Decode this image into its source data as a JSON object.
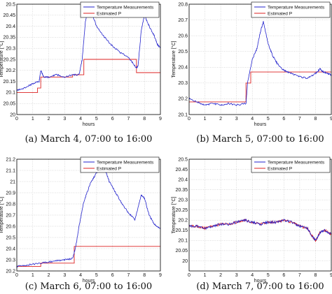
{
  "chart_data": [
    {
      "type": "line",
      "caption": "(a) March 4, 07:00 to 16:00",
      "xlabel": "hours",
      "ylabel": "Temperature [°C]",
      "xlim": [
        0,
        9
      ],
      "ylim": [
        20.0,
        20.5
      ],
      "xticks": [
        "0",
        "1",
        "2",
        "3",
        "4",
        "5",
        "6",
        "7",
        "8",
        "9"
      ],
      "yticks": [
        "20",
        "20.05",
        "20.1",
        "20.15",
        "20.2",
        "20.25",
        "20.3",
        "20.35",
        "20.4",
        "20.45",
        "20.5"
      ],
      "grid": true,
      "legend_position": "top-right",
      "series": [
        {
          "name": "Temperature Measurements",
          "color": "#2222cc",
          "x": [
            0,
            0.5,
            1.0,
            1.4,
            1.5,
            1.7,
            2.0,
            2.5,
            3.0,
            3.5,
            3.9,
            4.1,
            4.3,
            4.5,
            4.7,
            5.0,
            5.5,
            6.0,
            6.5,
            7.0,
            7.5,
            7.6,
            7.8,
            8.0,
            8.3,
            8.6,
            8.8,
            9.0
          ],
          "y": [
            20.11,
            20.12,
            20.14,
            20.15,
            20.2,
            20.17,
            20.17,
            20.18,
            20.17,
            20.18,
            20.18,
            20.25,
            20.42,
            20.49,
            20.46,
            20.4,
            20.35,
            20.31,
            20.28,
            20.26,
            20.21,
            20.22,
            20.38,
            20.45,
            20.4,
            20.36,
            20.32,
            20.3
          ]
        },
        {
          "name": "Estimated P",
          "color": "#dd2222",
          "x": [
            0,
            1.3,
            1.3,
            1.5,
            1.5,
            3.5,
            3.5,
            4.2,
            4.2,
            7.5,
            7.5,
            9.0
          ],
          "y": [
            20.1,
            20.1,
            20.12,
            20.12,
            20.17,
            20.17,
            20.18,
            20.18,
            20.25,
            20.25,
            20.19,
            20.19
          ]
        }
      ]
    },
    {
      "type": "line",
      "caption": "(b) March 5, 07:00 to 16:00",
      "xlabel": "hours",
      "ylabel": "Temperature [°C]",
      "xlim": [
        0,
        9
      ],
      "ylim": [
        20.1,
        20.8
      ],
      "xticks": [
        "0",
        "1",
        "2",
        "3",
        "4",
        "5",
        "6",
        "7",
        "8",
        "9"
      ],
      "yticks": [
        "20.1",
        "20.2",
        "20.3",
        "20.4",
        "20.5",
        "20.6",
        "20.7",
        "20.8"
      ],
      "grid": true,
      "legend_position": "top-right",
      "series": [
        {
          "name": "Temperature Measurements",
          "color": "#2222cc",
          "x": [
            0,
            0.5,
            1.0,
            1.5,
            2.0,
            2.5,
            3.0,
            3.6,
            3.7,
            4.0,
            4.3,
            4.5,
            4.7,
            5.0,
            5.3,
            5.6,
            6.0,
            6.5,
            7.0,
            7.5,
            8.0,
            8.3,
            8.5,
            8.8,
            9.0
          ],
          "y": [
            20.2,
            20.18,
            20.16,
            20.17,
            20.16,
            20.17,
            20.16,
            20.17,
            20.3,
            20.45,
            20.52,
            20.62,
            20.69,
            20.55,
            20.47,
            20.42,
            20.38,
            20.36,
            20.34,
            20.33,
            20.36,
            20.39,
            20.37,
            20.36,
            20.35
          ]
        },
        {
          "name": "Estimated P",
          "color": "#dd2222",
          "x": [
            0,
            3.6,
            3.6,
            3.9,
            3.9,
            6.0,
            6.0,
            9.0
          ],
          "y": [
            20.18,
            20.18,
            20.3,
            20.3,
            20.37,
            20.37,
            20.37,
            20.37
          ]
        }
      ]
    },
    {
      "type": "line",
      "caption": "(c) March 6, 07:00 to 16:00",
      "xlabel": "hours",
      "ylabel": "Temperature [°C]",
      "xlim": [
        0,
        9
      ],
      "ylim": [
        20.2,
        21.2
      ],
      "xticks": [
        "0",
        "1",
        "2",
        "3",
        "4",
        "5",
        "6",
        "7",
        "8",
        "9"
      ],
      "yticks": [
        "20.2",
        "20.3",
        "20.4",
        "20.5",
        "20.6",
        "20.7",
        "20.8",
        "20.9",
        "21",
        "21.1",
        "21.2"
      ],
      "grid": true,
      "legend_position": "top-right",
      "series": [
        {
          "name": "Temperature Measurements",
          "color": "#2222cc",
          "x": [
            0,
            0.5,
            1.0,
            1.5,
            2.0,
            2.5,
            3.0,
            3.5,
            3.7,
            3.9,
            4.2,
            4.6,
            5.0,
            5.5,
            5.8,
            6.2,
            6.6,
            7.0,
            7.4,
            7.8,
            8.0,
            8.3,
            8.6,
            9.0
          ],
          "y": [
            20.24,
            20.25,
            20.26,
            20.27,
            20.28,
            20.29,
            20.3,
            20.31,
            20.42,
            20.6,
            20.82,
            20.98,
            21.08,
            21.12,
            21.0,
            20.9,
            20.8,
            20.72,
            20.66,
            20.88,
            20.85,
            20.7,
            20.62,
            20.58
          ]
        },
        {
          "name": "Estimated P",
          "color": "#dd2222",
          "x": [
            0,
            1.5,
            1.5,
            3.6,
            3.6,
            9.0
          ],
          "y": [
            20.24,
            20.24,
            20.27,
            20.27,
            20.42,
            20.42
          ]
        }
      ]
    },
    {
      "type": "line",
      "caption": "(d) March 7, 07:00 to 16:00",
      "xlabel": "hours",
      "ylabel": "Temperature [°C]",
      "xlim": [
        0,
        9
      ],
      "ylim": [
        19.95,
        20.5
      ],
      "xticks": [
        "0",
        "1",
        "2",
        "3",
        "4",
        "5",
        "6",
        "7",
        "8",
        "9"
      ],
      "yticks": [
        "20",
        "20.05",
        "20.1",
        "20.15",
        "20.2",
        "20.25",
        "20.3",
        "20.35",
        "20.4",
        "20.45",
        "20.5"
      ],
      "grid": true,
      "legend_position": "top-right",
      "series": [
        {
          "name": "Temperature Measurements",
          "color": "#2222cc",
          "x": [
            0,
            0.5,
            1.0,
            1.5,
            2.0,
            2.5,
            3.0,
            3.5,
            4.0,
            4.5,
            5.0,
            5.5,
            6.0,
            6.5,
            7.0,
            7.5,
            7.8,
            8.0,
            8.3,
            8.6,
            9.0
          ],
          "y": [
            20.17,
            20.17,
            20.16,
            20.17,
            20.18,
            20.18,
            20.19,
            20.2,
            20.19,
            20.18,
            20.19,
            20.19,
            20.2,
            20.19,
            20.17,
            20.16,
            20.12,
            20.1,
            20.14,
            20.15,
            20.13
          ]
        },
        {
          "name": "Estimated P",
          "color": "#dd2222",
          "x": [
            0,
            0.5,
            1.0,
            1.5,
            2.0,
            2.5,
            3.0,
            3.5,
            4.0,
            4.5,
            5.0,
            5.5,
            6.0,
            6.5,
            7.0,
            7.5,
            7.8,
            8.0,
            8.3,
            8.6,
            9.0
          ],
          "y": [
            20.17,
            20.17,
            20.16,
            20.17,
            20.18,
            20.18,
            20.19,
            20.2,
            20.19,
            20.18,
            20.19,
            20.19,
            20.2,
            20.19,
            20.17,
            20.16,
            20.12,
            20.1,
            20.14,
            20.15,
            20.13
          ]
        }
      ]
    }
  ]
}
